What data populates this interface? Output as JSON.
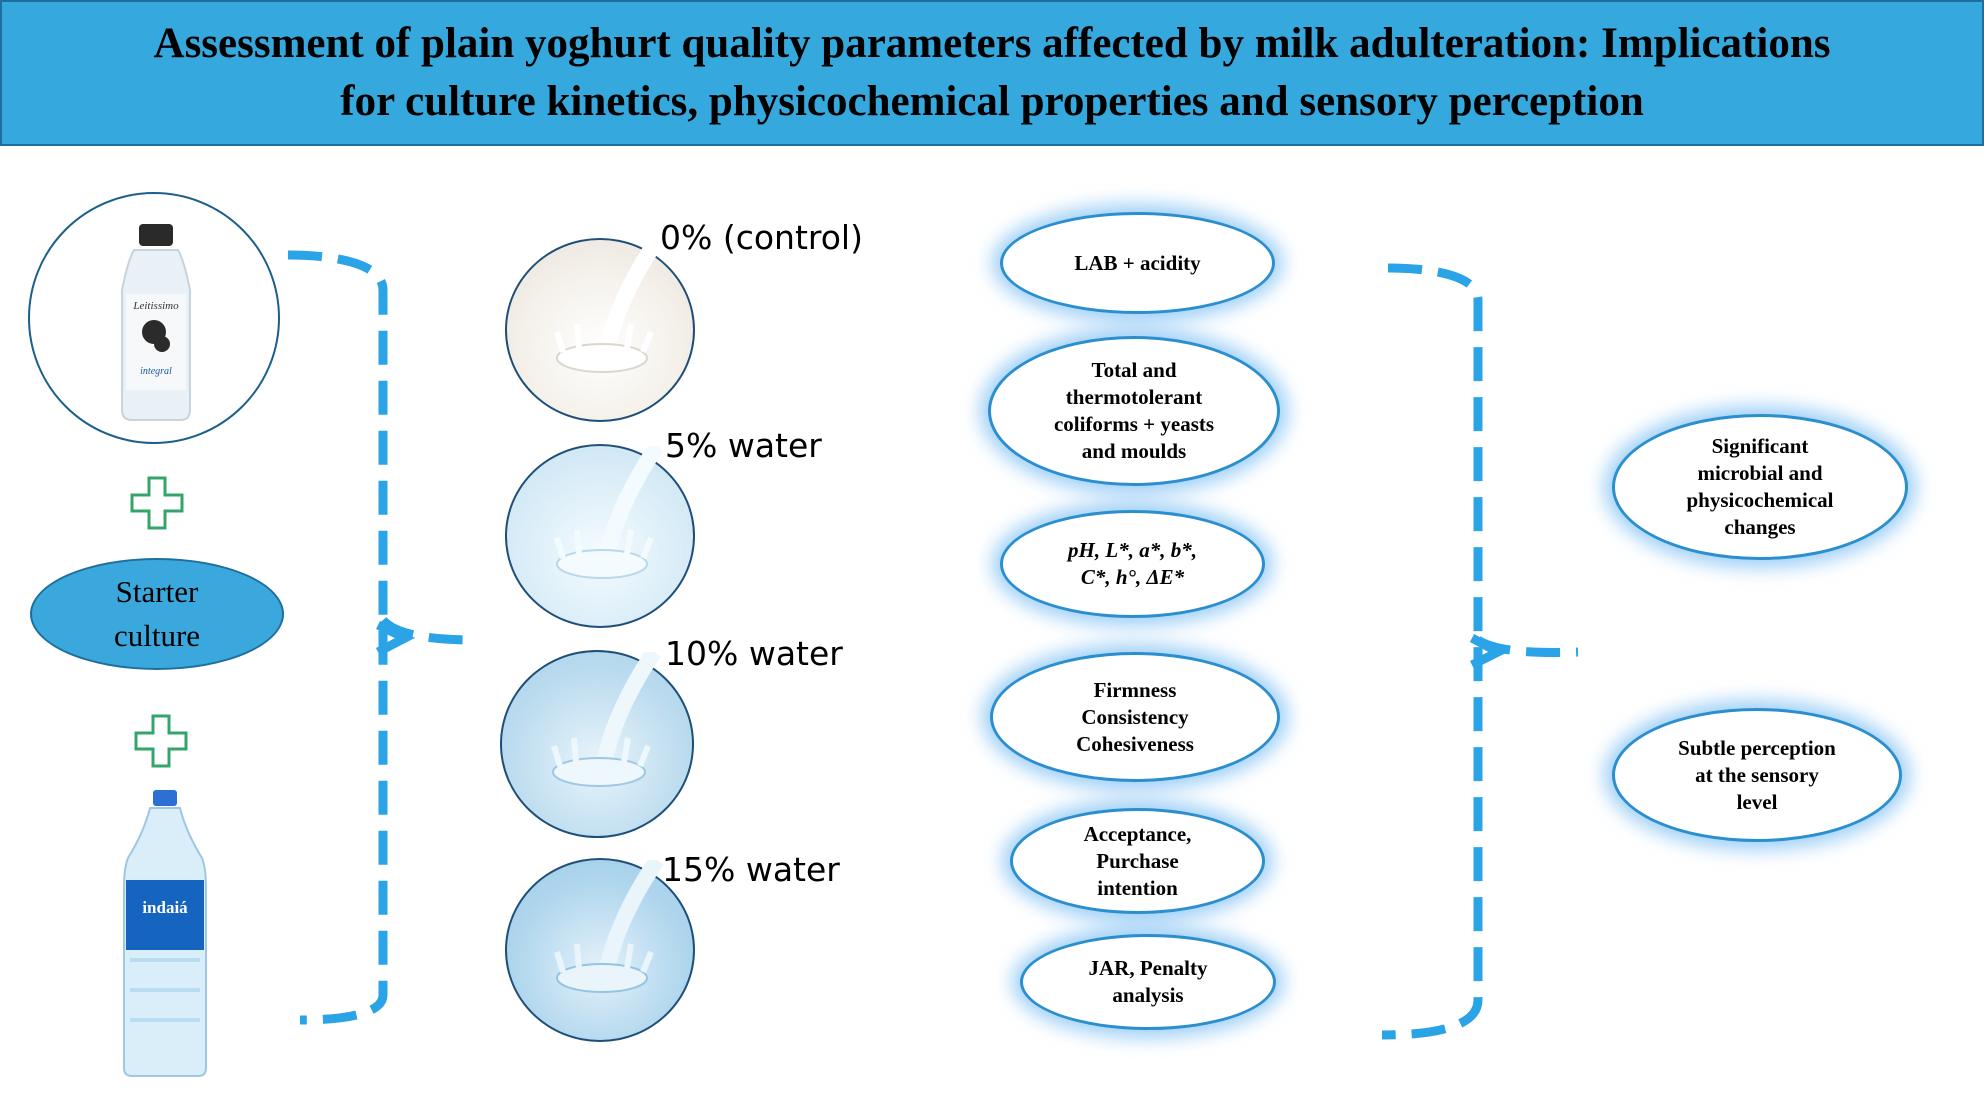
{
  "title": {
    "line1": "Assessment of plain yoghurt quality parameters affected by milk adulteration: Implications",
    "line2": "for culture kinetics, physicochemical properties and sensory perception"
  },
  "inputs": {
    "milk_bottle": {
      "brand_text": "Leitissimo",
      "variant_text": "integral"
    },
    "starter_culture": {
      "label": "Starter\nculture"
    },
    "water_bottle": {
      "brand_text": "indaiá"
    }
  },
  "treatments": [
    {
      "label": "0% (control)"
    },
    {
      "label": "5% water"
    },
    {
      "label": "10% water"
    },
    {
      "label": "15% water"
    }
  ],
  "analyses": [
    {
      "label": "LAB + acidity"
    },
    {
      "label": "Total and\nthermotolerant\ncoliforms + yeasts\nand moulds"
    },
    {
      "label": "pH, L*, a*, b*,\nC*, h°, ΔE*"
    },
    {
      "label": "Firmness\nConsistency\nCohesiveness"
    },
    {
      "label": "Acceptance,\nPurchase\nintention"
    },
    {
      "label": "JAR, Penalty\nanalysis"
    }
  ],
  "outcomes": [
    {
      "label": "Significant\nmicrobial and\nphysicochemical\nchanges"
    },
    {
      "label": "Subtle perception\nat the sensory\nlevel"
    }
  ],
  "colors": {
    "banner": "#35a8dd",
    "bracket": "#2aa4e6",
    "plus": "#33a46a",
    "culture_oval": "#3aa8dc",
    "oval_glow": "#58aef0"
  }
}
